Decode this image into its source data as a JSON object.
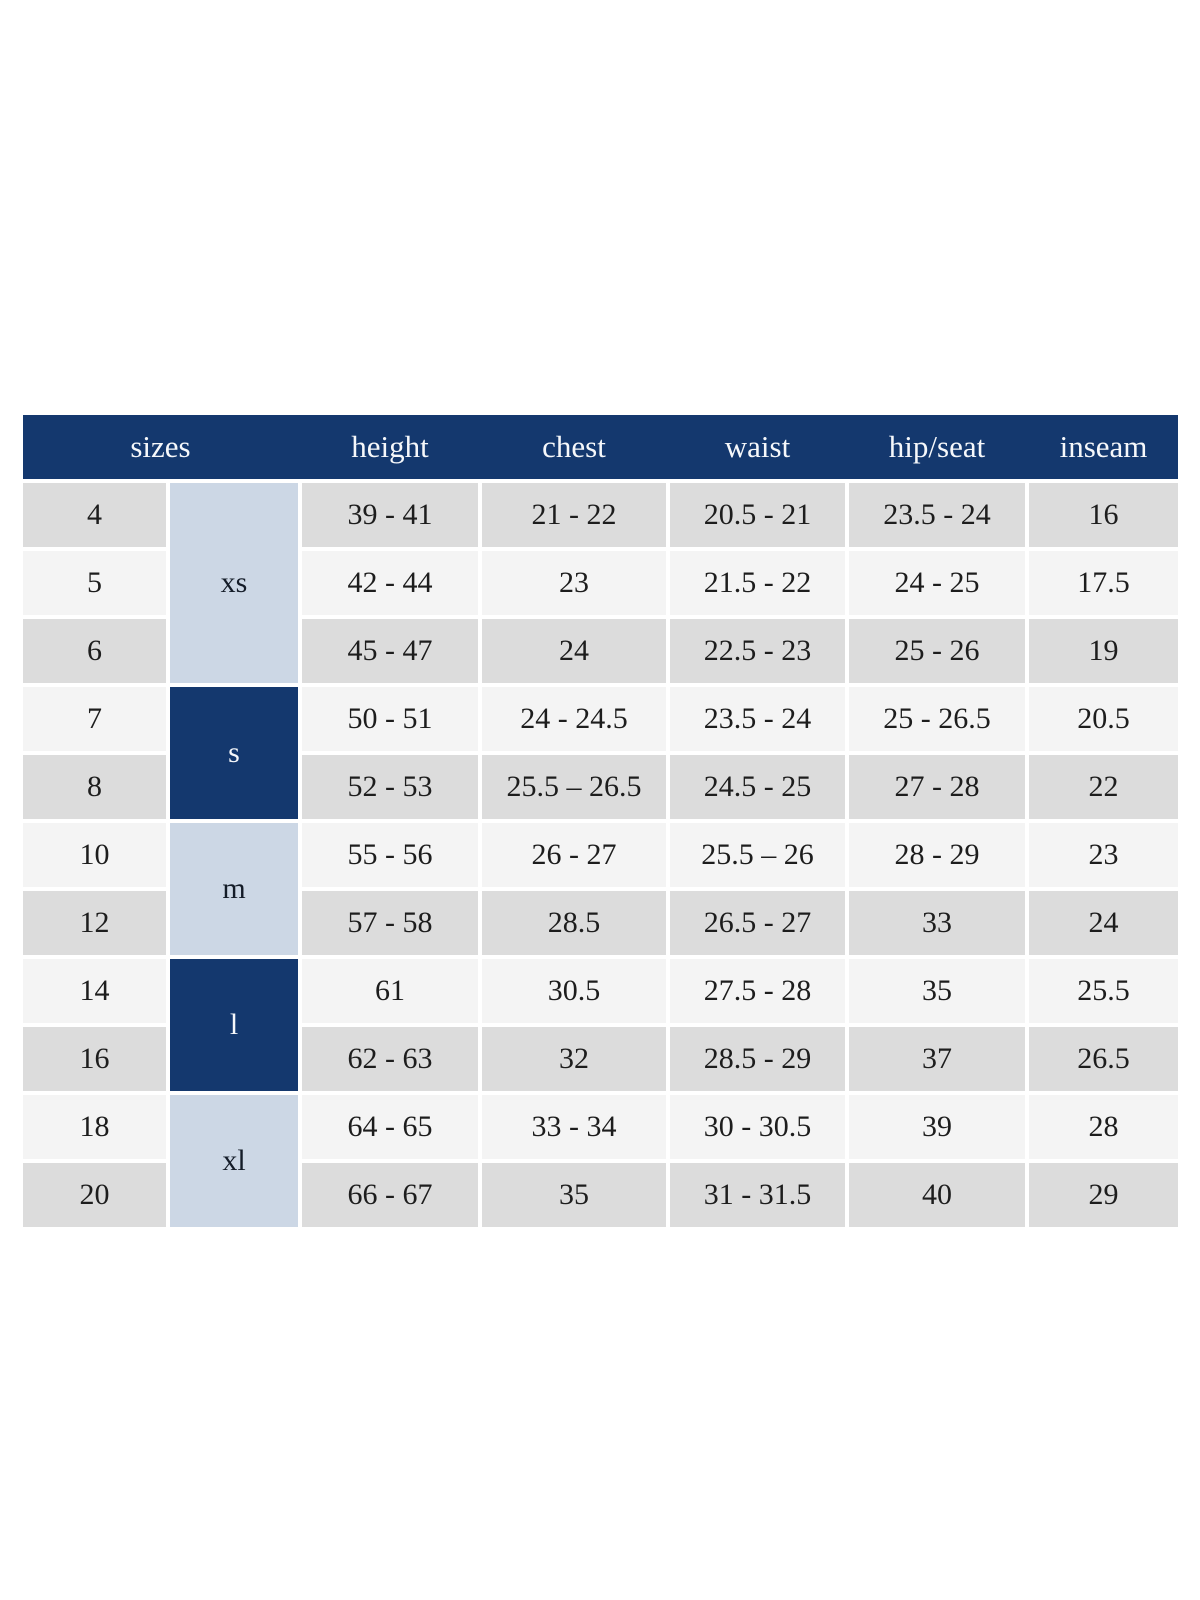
{
  "colors": {
    "header_bg": "#14386e",
    "group_dark_bg": "#14386e",
    "group_light_bg": "#ccd7e5",
    "row_gray_bg": "#dcdcdc",
    "row_light_bg": "#f4f4f4",
    "header_text": "#f6f8fb",
    "body_text": "#1d1d1d",
    "page_bg": "#ffffff"
  },
  "chart_data": {
    "type": "table",
    "columns": [
      "sizes",
      "height",
      "chest",
      "waist",
      "hip/seat",
      "inseam"
    ],
    "size_groups": [
      {
        "label": "xs",
        "row_span": 3,
        "variant": "light-blue"
      },
      {
        "label": "s",
        "row_span": 2,
        "variant": "dark-blue"
      },
      {
        "label": "m",
        "row_span": 2,
        "variant": "light-blue"
      },
      {
        "label": "l",
        "row_span": 2,
        "variant": "dark-blue"
      },
      {
        "label": "xl",
        "row_span": 2,
        "variant": "light-blue"
      }
    ],
    "rows": [
      {
        "size": "4",
        "height": "39 - 41",
        "chest": "21 - 22",
        "waist": "20.5 - 21",
        "hip_seat": "23.5 - 24",
        "inseam": "16",
        "row_shade": "gray"
      },
      {
        "size": "5",
        "height": "42 - 44",
        "chest": "23",
        "waist": "21.5 - 22",
        "hip_seat": "24 - 25",
        "inseam": "17.5",
        "row_shade": "light"
      },
      {
        "size": "6",
        "height": "45 - 47",
        "chest": "24",
        "waist": "22.5 - 23",
        "hip_seat": "25 - 26",
        "inseam": "19",
        "row_shade": "gray"
      },
      {
        "size": "7",
        "height": "50 - 51",
        "chest": "24 - 24.5",
        "waist": "23.5 - 24",
        "hip_seat": "25 - 26.5",
        "inseam": "20.5",
        "row_shade": "light"
      },
      {
        "size": "8",
        "height": "52 - 53",
        "chest": "25.5 – 26.5",
        "waist": "24.5 - 25",
        "hip_seat": "27 - 28",
        "inseam": "22",
        "row_shade": "gray"
      },
      {
        "size": "10",
        "height": "55 - 56",
        "chest": "26 - 27",
        "waist": "25.5 – 26",
        "hip_seat": "28 - 29",
        "inseam": "23",
        "row_shade": "light"
      },
      {
        "size": "12",
        "height": "57 - 58",
        "chest": "28.5",
        "waist": "26.5 - 27",
        "hip_seat": "33",
        "inseam": "24",
        "row_shade": "gray"
      },
      {
        "size": "14",
        "height": "61",
        "chest": "30.5",
        "waist": "27.5 - 28",
        "hip_seat": "35",
        "inseam": "25.5",
        "row_shade": "light"
      },
      {
        "size": "16",
        "height": "62 - 63",
        "chest": "32",
        "waist": "28.5 - 29",
        "hip_seat": "37",
        "inseam": "26.5",
        "row_shade": "gray"
      },
      {
        "size": "18",
        "height": "64 - 65",
        "chest": "33 - 34",
        "waist": "30 - 30.5",
        "hip_seat": "39",
        "inseam": "28",
        "row_shade": "light"
      },
      {
        "size": "20",
        "height": "66 - 67",
        "chest": "35",
        "waist": "31 - 31.5",
        "hip_seat": "40",
        "inseam": "29",
        "row_shade": "gray"
      }
    ]
  }
}
